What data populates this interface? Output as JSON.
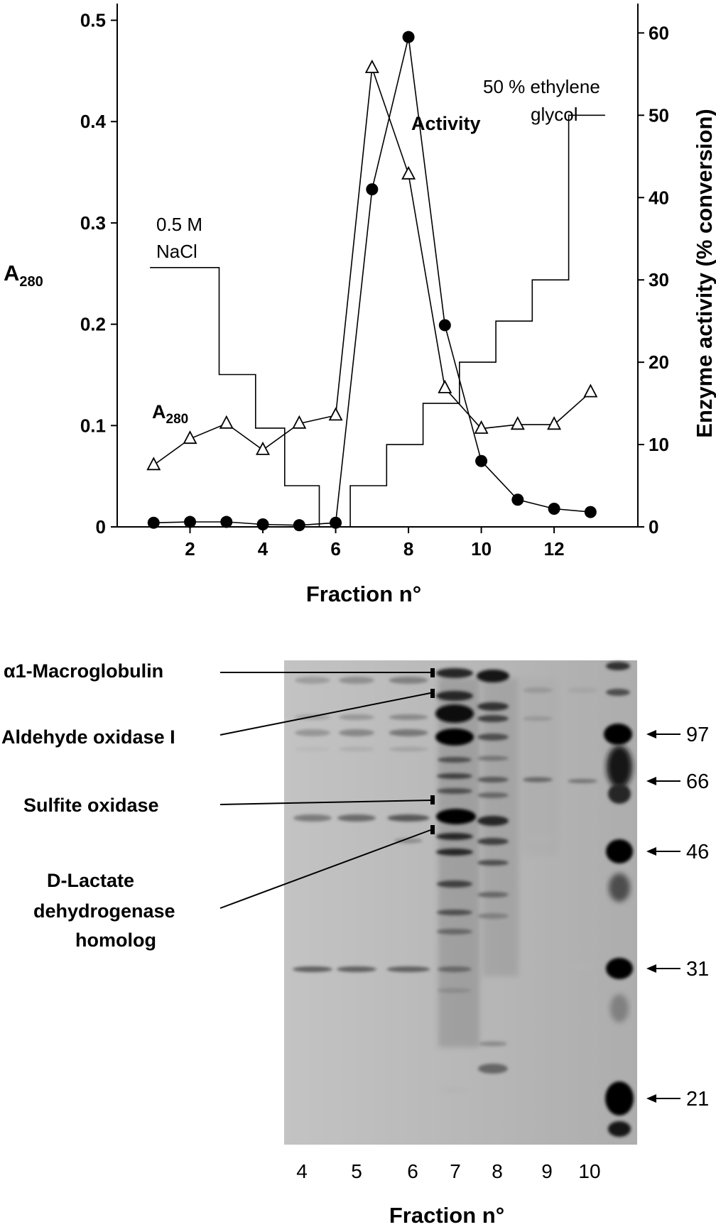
{
  "chart_data": [
    {
      "type": "line",
      "xlabel": "Fraction n°",
      "ylabel_left": "A",
      "ylabel_left_sub": "280",
      "ylabel_right": "Enzyme activity (% conversion)",
      "xlim": [
        0,
        14.3
      ],
      "ylim_left": [
        0,
        0.52
      ],
      "ylim_right": [
        0,
        64
      ],
      "x_ticks": [
        2,
        4,
        6,
        8,
        10,
        12
      ],
      "x_tick_labels": [
        "2",
        "4",
        "6",
        "8",
        "10",
        "12"
      ],
      "y_left_ticks": [
        0,
        0.1,
        0.2,
        0.3,
        0.4,
        0.5
      ],
      "y_left_tick_labels": [
        "0",
        "0.1",
        "0.2",
        "0.3",
        "0.4",
        "0.5"
      ],
      "y_right_ticks": [
        0,
        10,
        20,
        30,
        40,
        50,
        60
      ],
      "y_right_tick_labels": [
        "0",
        "10",
        "20",
        "30",
        "40",
        "50",
        "60"
      ],
      "grid": false,
      "series": [
        {
          "name": "A280",
          "axis": "left",
          "marker": "open-triangle",
          "x": [
            1,
            2,
            3,
            4,
            5,
            6,
            7,
            8,
            9,
            10,
            11,
            12,
            13
          ],
          "y": [
            0.061,
            0.087,
            0.102,
            0.076,
            0.102,
            0.11,
            0.453,
            0.348,
            0.137,
            0.097,
            0.101,
            0.101,
            0.133
          ]
        },
        {
          "name": "Activity",
          "axis": "right",
          "marker": "filled-circle",
          "x": [
            1,
            2,
            3,
            4,
            5,
            6,
            7,
            8,
            9,
            10,
            11,
            12,
            13
          ],
          "y": [
            0.5,
            0.6,
            0.6,
            0.3,
            0.2,
            0.5,
            41,
            59.5,
            24.5,
            8,
            3.3,
            2.2,
            1.8
          ]
        },
        {
          "name": "Gradient",
          "axis": "right",
          "marker": "none",
          "style": "step",
          "points": [
            [
              0.9,
              31.5
            ],
            [
              2.8,
              31.5
            ],
            [
              2.8,
              18.5
            ],
            [
              3.8,
              18.5
            ],
            [
              3.8,
              12
            ],
            [
              4.6,
              12
            ],
            [
              4.6,
              5
            ],
            [
              5.55,
              5
            ],
            [
              5.55,
              0
            ],
            [
              6.4,
              0
            ],
            [
              6.4,
              5
            ],
            [
              7.4,
              5
            ],
            [
              7.4,
              10
            ],
            [
              8.4,
              10
            ],
            [
              8.4,
              15
            ],
            [
              9.4,
              15
            ],
            [
              9.4,
              20
            ],
            [
              10.4,
              20
            ],
            [
              10.4,
              25
            ],
            [
              11.4,
              25
            ],
            [
              11.4,
              30
            ],
            [
              12.4,
              30
            ],
            [
              12.4,
              50
            ],
            [
              13.4,
              50
            ]
          ]
        }
      ],
      "annotations": {
        "nacl_line1": "0.5 M",
        "nacl_line2": "NaCl",
        "eg_line1": "50 % ethylene",
        "eg_line2": "glycol",
        "activity_label": "Activity",
        "a280_label": "A",
        "a280_label_sub": "280"
      }
    }
  ],
  "gel": {
    "protein_labels": [
      "α1-Macroglobulin",
      "Aldehyde oxidase I",
      "Sulfite oxidase",
      "D-Lactate",
      "dehydrogenase",
      "homolog"
    ],
    "lanes": [
      "4",
      "5",
      "6",
      "7",
      "8",
      "9",
      "10"
    ],
    "markers": [
      "97",
      "66",
      "46",
      "31",
      "21"
    ],
    "xlabel": "Fraction n°"
  }
}
